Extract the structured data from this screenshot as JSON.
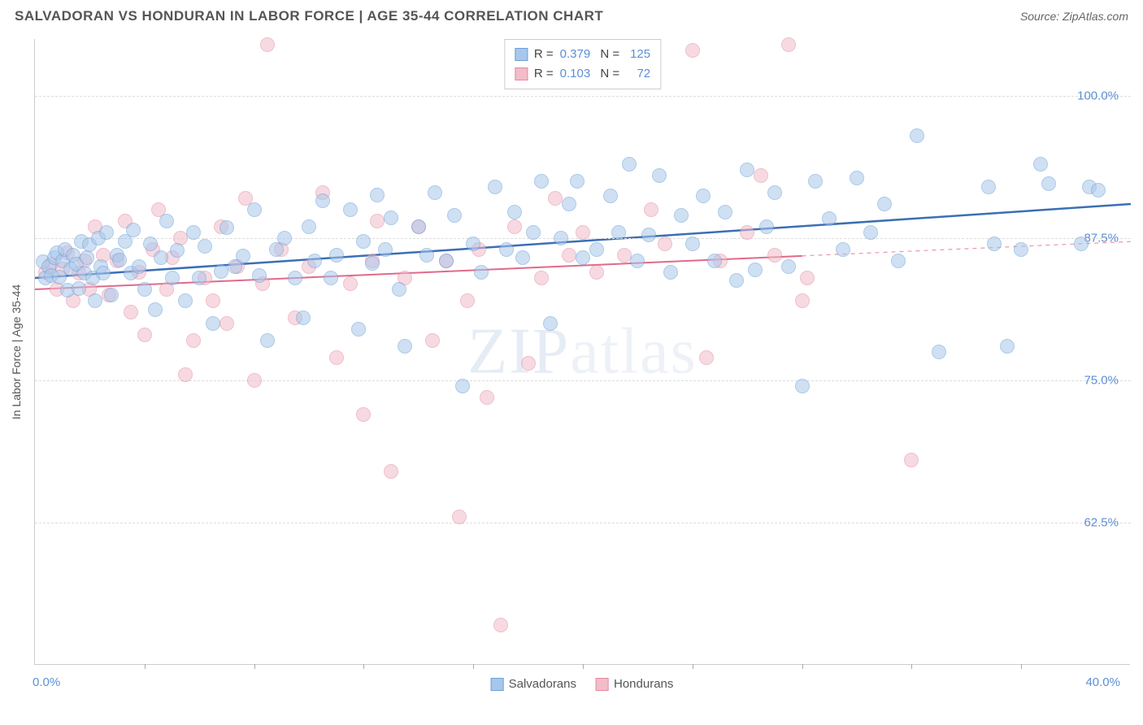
{
  "header": {
    "title": "SALVADORAN VS HONDURAN IN LABOR FORCE | AGE 35-44 CORRELATION CHART",
    "source": "Source: ZipAtlas.com"
  },
  "chart": {
    "type": "scatter",
    "xlim": [
      0.0,
      40.0
    ],
    "ylim": [
      50.0,
      105.0
    ],
    "yaxis_label": "In Labor Force | Age 35-44",
    "xaxis_min_label": "0.0%",
    "xaxis_max_label": "40.0%",
    "yticks": [
      {
        "value": 62.5,
        "label": "62.5%"
      },
      {
        "value": 75.0,
        "label": "75.0%"
      },
      {
        "value": 87.5,
        "label": "87.5%"
      },
      {
        "value": 100.0,
        "label": "100.0%"
      }
    ],
    "xticks_at": [
      4,
      8,
      12,
      16,
      20,
      24,
      28,
      32,
      36
    ],
    "background_color": "#ffffff",
    "grid_color": "#dddddd",
    "watermark": "ZIPatlas",
    "series": [
      {
        "name": "Salvadorans",
        "fill": "#a9c7eb",
        "stroke": "#6a9fd8",
        "fill_opacity": 0.55,
        "marker_radius": 9,
        "trend": {
          "x1": 0.0,
          "y1": 84.0,
          "x2": 40.0,
          "y2": 90.5,
          "color": "#3b6fb5",
          "width": 2.5,
          "dash_after_x": null
        },
        "stats": {
          "R": "0.379",
          "N": "125"
        },
        "points": [
          [
            0.3,
            85.4
          ],
          [
            0.4,
            84.0
          ],
          [
            0.5,
            85.0
          ],
          [
            0.6,
            84.2
          ],
          [
            0.7,
            85.8
          ],
          [
            0.8,
            86.2
          ],
          [
            0.9,
            84.1
          ],
          [
            1.0,
            85.5
          ],
          [
            1.1,
            86.5
          ],
          [
            1.2,
            82.9
          ],
          [
            1.3,
            84.8
          ],
          [
            1.4,
            86.0
          ],
          [
            1.5,
            85.2
          ],
          [
            1.6,
            83.1
          ],
          [
            1.7,
            87.2
          ],
          [
            1.8,
            84.4
          ],
          [
            1.9,
            85.8
          ],
          [
            2.0,
            86.9
          ],
          [
            2.1,
            84.0
          ],
          [
            2.2,
            82.0
          ],
          [
            2.3,
            87.5
          ],
          [
            2.4,
            85.0
          ],
          [
            2.5,
            84.4
          ],
          [
            2.6,
            88.0
          ],
          [
            2.8,
            82.5
          ],
          [
            3.0,
            86.0
          ],
          [
            3.1,
            85.6
          ],
          [
            3.3,
            87.2
          ],
          [
            3.5,
            84.4
          ],
          [
            3.6,
            88.2
          ],
          [
            3.8,
            85.0
          ],
          [
            4.0,
            83.0
          ],
          [
            4.2,
            87.0
          ],
          [
            4.4,
            81.2
          ],
          [
            4.6,
            85.8
          ],
          [
            4.8,
            89.0
          ],
          [
            5.0,
            84.0
          ],
          [
            5.2,
            86.4
          ],
          [
            5.5,
            82.0
          ],
          [
            5.8,
            88.0
          ],
          [
            6.0,
            84.0
          ],
          [
            6.2,
            86.8
          ],
          [
            6.5,
            80.0
          ],
          [
            6.8,
            84.6
          ],
          [
            7.0,
            88.4
          ],
          [
            7.3,
            85.0
          ],
          [
            7.6,
            85.9
          ],
          [
            8.0,
            90.0
          ],
          [
            8.2,
            84.2
          ],
          [
            8.5,
            78.5
          ],
          [
            8.8,
            86.5
          ],
          [
            9.1,
            87.5
          ],
          [
            9.5,
            84.0
          ],
          [
            9.8,
            80.5
          ],
          [
            10.0,
            88.5
          ],
          [
            10.2,
            85.5
          ],
          [
            10.5,
            90.8
          ],
          [
            10.8,
            84.0
          ],
          [
            11.0,
            86.0
          ],
          [
            11.5,
            90.0
          ],
          [
            11.8,
            79.5
          ],
          [
            12.0,
            87.2
          ],
          [
            12.3,
            85.3
          ],
          [
            12.5,
            91.3
          ],
          [
            12.8,
            86.5
          ],
          [
            13.0,
            89.3
          ],
          [
            13.3,
            83.0
          ],
          [
            13.5,
            78.0
          ],
          [
            14.0,
            88.5
          ],
          [
            14.3,
            86.0
          ],
          [
            14.6,
            91.5
          ],
          [
            15.0,
            85.5
          ],
          [
            15.3,
            89.5
          ],
          [
            15.6,
            74.5
          ],
          [
            16.0,
            87.0
          ],
          [
            16.3,
            84.5
          ],
          [
            16.8,
            92.0
          ],
          [
            17.2,
            86.5
          ],
          [
            17.5,
            89.8
          ],
          [
            17.8,
            85.8
          ],
          [
            18.2,
            88.0
          ],
          [
            18.5,
            92.5
          ],
          [
            18.8,
            80.0
          ],
          [
            19.2,
            87.5
          ],
          [
            19.5,
            90.5
          ],
          [
            19.8,
            92.5
          ],
          [
            20.0,
            85.8
          ],
          [
            20.5,
            86.5
          ],
          [
            21.0,
            91.2
          ],
          [
            21.3,
            88.0
          ],
          [
            21.7,
            94.0
          ],
          [
            22.0,
            85.5
          ],
          [
            22.4,
            87.8
          ],
          [
            22.8,
            93.0
          ],
          [
            23.2,
            84.5
          ],
          [
            23.6,
            89.5
          ],
          [
            24.0,
            87.0
          ],
          [
            24.4,
            91.2
          ],
          [
            24.8,
            85.5
          ],
          [
            25.2,
            89.8
          ],
          [
            25.6,
            83.8
          ],
          [
            26.0,
            93.5
          ],
          [
            26.3,
            84.7
          ],
          [
            26.7,
            88.5
          ],
          [
            27.0,
            91.5
          ],
          [
            27.5,
            85.0
          ],
          [
            28.0,
            74.5
          ],
          [
            28.5,
            92.5
          ],
          [
            29.0,
            89.2
          ],
          [
            29.5,
            86.5
          ],
          [
            30.0,
            92.8
          ],
          [
            30.5,
            88.0
          ],
          [
            31.0,
            90.5
          ],
          [
            31.5,
            85.5
          ],
          [
            32.2,
            96.5
          ],
          [
            33.0,
            77.5
          ],
          [
            34.8,
            92.0
          ],
          [
            35.0,
            87.0
          ],
          [
            35.5,
            78.0
          ],
          [
            36.0,
            86.5
          ],
          [
            36.7,
            94.0
          ],
          [
            37.0,
            92.3
          ],
          [
            38.2,
            87.0
          ],
          [
            38.5,
            92.0
          ],
          [
            38.8,
            91.7
          ]
        ]
      },
      {
        "name": "Hondurans",
        "fill": "#f2bcc9",
        "stroke": "#e48aa0",
        "fill_opacity": 0.55,
        "marker_radius": 9,
        "trend": {
          "x1": 0.0,
          "y1": 83.0,
          "x2": 40.0,
          "y2": 87.2,
          "color": "#e06a8a",
          "width": 2,
          "dash_after_x": 28.0
        },
        "stats": {
          "R": "0.103",
          "N": "72"
        },
        "points": [
          [
            0.4,
            84.5
          ],
          [
            0.6,
            85.2
          ],
          [
            0.8,
            83.0
          ],
          [
            1.0,
            84.8
          ],
          [
            1.2,
            86.2
          ],
          [
            1.4,
            82.0
          ],
          [
            1.6,
            84.4
          ],
          [
            1.8,
            85.5
          ],
          [
            2.0,
            83.0
          ],
          [
            2.2,
            88.5
          ],
          [
            2.5,
            86.0
          ],
          [
            2.7,
            82.5
          ],
          [
            3.0,
            85.5
          ],
          [
            3.3,
            89.0
          ],
          [
            3.5,
            81.0
          ],
          [
            3.8,
            84.5
          ],
          [
            4.0,
            79.0
          ],
          [
            4.3,
            86.5
          ],
          [
            4.5,
            90.0
          ],
          [
            4.8,
            83.0
          ],
          [
            5.0,
            85.8
          ],
          [
            5.3,
            87.5
          ],
          [
            5.5,
            75.5
          ],
          [
            5.8,
            78.5
          ],
          [
            6.2,
            84.0
          ],
          [
            6.5,
            82.0
          ],
          [
            6.8,
            88.5
          ],
          [
            7.0,
            80.0
          ],
          [
            7.4,
            85.0
          ],
          [
            7.7,
            91.0
          ],
          [
            8.0,
            75.0
          ],
          [
            8.3,
            83.5
          ],
          [
            8.5,
            104.5
          ],
          [
            9.0,
            86.5
          ],
          [
            9.5,
            80.5
          ],
          [
            10.0,
            85.0
          ],
          [
            10.5,
            91.5
          ],
          [
            11.0,
            77.0
          ],
          [
            11.5,
            83.5
          ],
          [
            12.0,
            72.0
          ],
          [
            12.3,
            85.5
          ],
          [
            12.5,
            89.0
          ],
          [
            13.0,
            67.0
          ],
          [
            13.5,
            84.0
          ],
          [
            14.0,
            88.5
          ],
          [
            14.5,
            78.5
          ],
          [
            15.0,
            85.5
          ],
          [
            15.5,
            63.0
          ],
          [
            15.8,
            82.0
          ],
          [
            16.2,
            86.5
          ],
          [
            16.5,
            73.5
          ],
          [
            17.0,
            53.5
          ],
          [
            17.5,
            88.5
          ],
          [
            18.0,
            76.5
          ],
          [
            18.5,
            84.0
          ],
          [
            19.0,
            91.0
          ],
          [
            19.5,
            86.0
          ],
          [
            20.0,
            88.0
          ],
          [
            20.5,
            84.5
          ],
          [
            21.5,
            86.0
          ],
          [
            22.5,
            90.0
          ],
          [
            23.0,
            87.0
          ],
          [
            24.0,
            104.0
          ],
          [
            24.5,
            77.0
          ],
          [
            25.0,
            85.5
          ],
          [
            26.0,
            88.0
          ],
          [
            26.5,
            93.0
          ],
          [
            27.0,
            86.0
          ],
          [
            27.5,
            104.5
          ],
          [
            28.0,
            82.0
          ],
          [
            28.2,
            84.0
          ],
          [
            32.0,
            68.0
          ]
        ]
      }
    ],
    "legend_bottom": [
      {
        "swatch_fill": "#a9c7eb",
        "swatch_stroke": "#6a9fd8",
        "label": "Salvadorans"
      },
      {
        "swatch_fill": "#f2bcc9",
        "swatch_stroke": "#e48aa0",
        "label": "Hondurans"
      }
    ]
  }
}
